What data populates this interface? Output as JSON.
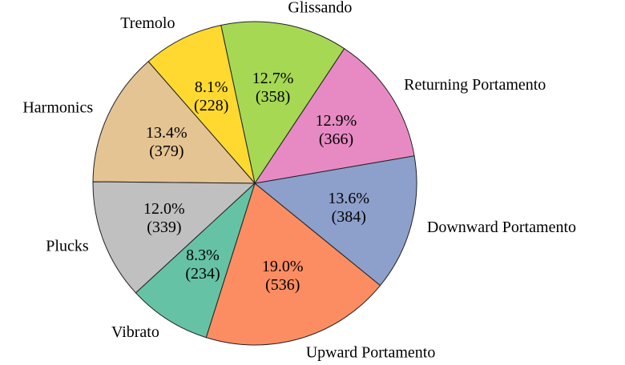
{
  "chart_data": {
    "type": "pie",
    "categories": [
      "Upward Portamento",
      "Downward Portamento",
      "Returning Portamento",
      "Glissando",
      "Tremolo",
      "Harmonics",
      "Plucks",
      "Vibrato"
    ],
    "values": [
      536,
      384,
      366,
      358,
      228,
      379,
      339,
      234
    ],
    "value_labels": [
      "19.0%\n(536)",
      "13.6%\n(384)",
      "12.9%\n(366)",
      "12.7%\n(358)",
      "8.1%\n(228)",
      "13.4%\n(379)",
      "12.0%\n(339)",
      "8.3%\n(234)"
    ],
    "colors": [
      "#fc8d62",
      "#8da0cb",
      "#e78ac3",
      "#a6d854",
      "#ffd92f",
      "#e5c494",
      "#c0c0c0",
      "#66c2a5"
    ]
  }
}
